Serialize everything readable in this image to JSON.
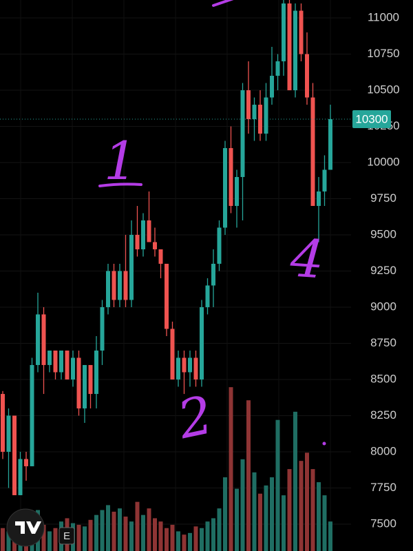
{
  "chart_data": {
    "type": "candlestick",
    "open": [
      8400,
      8000,
      8250,
      7700,
      7950,
      7900,
      8600,
      8950,
      8600,
      8700,
      8550,
      8700,
      8500,
      8650,
      8300,
      8600,
      8400,
      8700,
      9000,
      9250,
      9050,
      9250,
      9050,
      9500,
      9400,
      9600,
      9450,
      9400,
      9300,
      8850,
      8500,
      8650,
      8550,
      8650,
      8500,
      9000,
      9150,
      9300,
      9550,
      10100,
      9700,
      9900,
      10500,
      10300,
      10400,
      10200,
      10450,
      10600,
      10700,
      11100,
      10500,
      11050,
      10750,
      10450,
      9700,
      9800,
      9950
    ],
    "high": [
      8420,
      8300,
      8250,
      8000,
      8000,
      8650,
      9100,
      9000,
      8700,
      8700,
      8700,
      8700,
      8700,
      8700,
      8600,
      8600,
      8800,
      9050,
      9300,
      9300,
      9300,
      9500,
      9600,
      9700,
      9650,
      9800,
      9550,
      9400,
      9300,
      8900,
      8700,
      8700,
      8700,
      8700,
      9050,
      9200,
      9400,
      9600,
      10150,
      10250,
      9950,
      10550,
      10700,
      10450,
      10500,
      10550,
      10800,
      10750,
      11150,
      11150,
      11100,
      11100,
      10900,
      10550,
      9900,
      10050,
      10400
    ],
    "low": [
      7950,
      7750,
      7700,
      7700,
      7800,
      7900,
      8550,
      8400,
      8550,
      8500,
      8500,
      8500,
      8450,
      8250,
      8200,
      8300,
      8300,
      8600,
      8950,
      9000,
      9000,
      9000,
      9000,
      9350,
      9350,
      9450,
      9350,
      9200,
      8800,
      8500,
      8450,
      8400,
      8450,
      8450,
      8450,
      8950,
      9000,
      9250,
      9500,
      9650,
      9550,
      9600,
      10200,
      10150,
      10150,
      10150,
      10400,
      10500,
      10600,
      10500,
      10450,
      10700,
      10400,
      9700,
      9450,
      9700,
      9950
    ],
    "close": [
      8000,
      8250,
      7700,
      7950,
      7900,
      8600,
      8950,
      8600,
      8700,
      8550,
      8700,
      8500,
      8650,
      8300,
      8600,
      8400,
      8700,
      9000,
      9250,
      9050,
      9250,
      9050,
      9500,
      9400,
      9600,
      9450,
      9400,
      9300,
      8850,
      8500,
      8650,
      8550,
      8650,
      8500,
      9000,
      9150,
      9300,
      9550,
      10100,
      9700,
      9900,
      10500,
      10300,
      10400,
      10200,
      10450,
      10600,
      10700,
      11100,
      10500,
      11050,
      10750,
      10450,
      9700,
      9800,
      9950,
      10300
    ],
    "volume": [
      14,
      12,
      10,
      15,
      22,
      18,
      25,
      16,
      12,
      14,
      18,
      20,
      17,
      16,
      15,
      19,
      22,
      25,
      28,
      24,
      26,
      21,
      18,
      30,
      22,
      26,
      20,
      18,
      14,
      16,
      12,
      10,
      11,
      15,
      14,
      18,
      20,
      26,
      45,
      100,
      38,
      56,
      92,
      48,
      35,
      40,
      45,
      80,
      34,
      50,
      85,
      55,
      60,
      50,
      42,
      34,
      18
    ],
    "volume_lim": [
      0,
      103
    ],
    "up_color": "#26a69a",
    "down_color": "#ef5350",
    "up_volume_color": "#1f6e63",
    "down_volume_color": "#8e3434",
    "ylim": [
      7314,
      11124
    ],
    "yticks": [
      7500,
      7750,
      8000,
      8250,
      8500,
      8750,
      9000,
      9250,
      9500,
      9750,
      10000,
      10250,
      10500,
      10750,
      11000
    ],
    "grid": true,
    "current_price": 10300,
    "annotations": [
      "1",
      "2",
      "4"
    ],
    "annotation_color": "#b43ce6"
  },
  "ui": {
    "button": "E"
  }
}
